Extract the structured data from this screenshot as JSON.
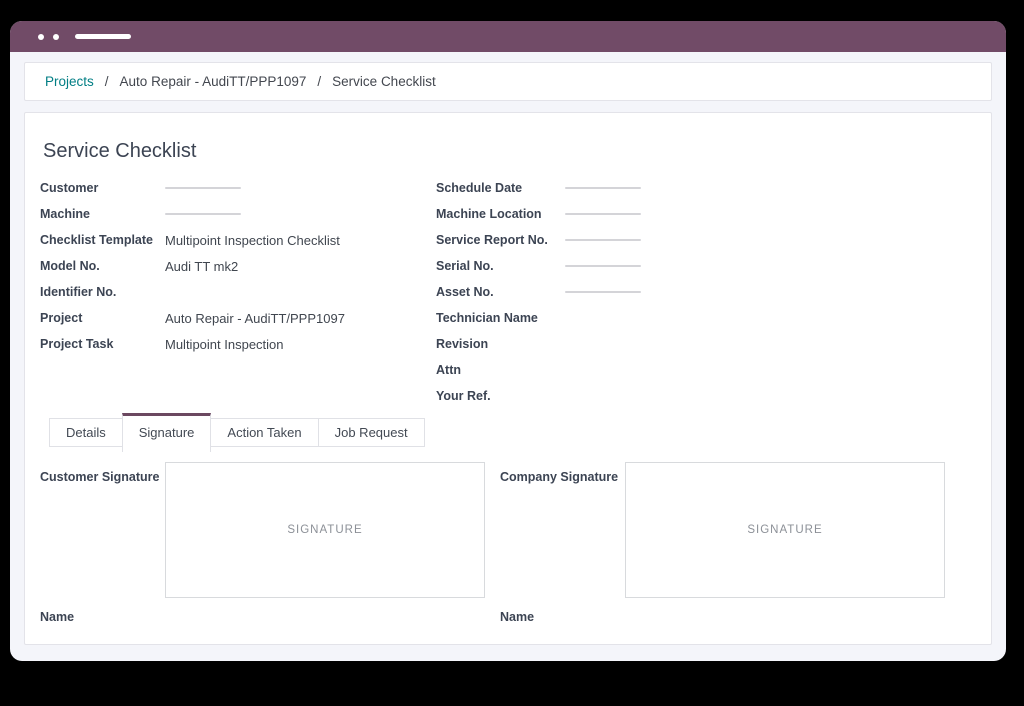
{
  "colors": {
    "titlebar": "#714b67",
    "tab_accent": "#6b4860",
    "link": "#017e84",
    "label_text": "#3c4453",
    "canvas": "#000000",
    "window_bg": "#f4f5fa"
  },
  "breadcrumb": {
    "separator": "/",
    "items": [
      {
        "label": "Projects"
      },
      {
        "label": "Auto Repair - AudiTT/PPP1097"
      },
      {
        "label": "Service Checklist"
      }
    ]
  },
  "form": {
    "title": "Service Checklist",
    "left_fields": [
      {
        "label": "Customer",
        "value": "",
        "empty_line": true
      },
      {
        "label": "Machine",
        "value": "",
        "empty_line": true
      },
      {
        "label": "Checklist Template",
        "value": "Multipoint Inspection Checklist"
      },
      {
        "label": "Model No.",
        "value": "Audi TT mk2"
      },
      {
        "label": "Identifier No.",
        "value": ""
      },
      {
        "label": "Project",
        "value": "Auto Repair - AudiTT/PPP1097"
      },
      {
        "label": "Project Task",
        "value": "Multipoint Inspection"
      }
    ],
    "right_fields": [
      {
        "label": "Schedule Date",
        "value": "",
        "empty_line": true
      },
      {
        "label": "Machine Location",
        "value": "",
        "empty_line": true
      },
      {
        "label": "Service Report No.",
        "value": "",
        "empty_line": true
      },
      {
        "label": "Serial No.",
        "value": "",
        "empty_line": true
      },
      {
        "label": "Asset No.",
        "value": "",
        "empty_line": true
      },
      {
        "label": "Technician Name",
        "value": ""
      },
      {
        "label": "Revision",
        "value": ""
      },
      {
        "label": "Attn",
        "value": ""
      },
      {
        "label": "Your Ref.",
        "value": ""
      }
    ]
  },
  "tabs": [
    {
      "label": "Details",
      "active": false
    },
    {
      "label": "Signature",
      "active": true
    },
    {
      "label": "Action Taken",
      "active": false
    },
    {
      "label": "Job Request",
      "active": false
    }
  ],
  "signatures": {
    "customer": {
      "label": "Customer Signature",
      "placeholder": "SIGNATURE",
      "name_label": "Name"
    },
    "company": {
      "label": "Company Signature",
      "placeholder": "SIGNATURE",
      "name_label": "Name"
    }
  }
}
